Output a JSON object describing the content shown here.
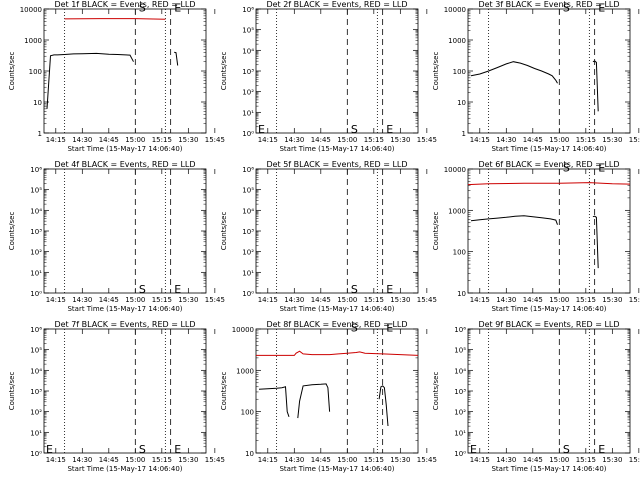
{
  "colors": {
    "events": "#000000",
    "lld": "#cc0000"
  },
  "x_ticks": [
    "14:15",
    "14:30",
    "14:45",
    "15:00",
    "15:15",
    "15:30",
    "15:45"
  ],
  "xlabel": "Start Time (15-May-17 14:06:40)",
  "ylabel": "Counts/sec",
  "marker_labels": {
    "start": "S",
    "end": "E"
  },
  "chart_data": [
    {
      "type": "line",
      "title": "Det 1f BLACK = Events, RED = LLD",
      "yscale": "log",
      "ylim": [
        1,
        10000
      ],
      "y_ticks": [
        "1",
        "10",
        "100",
        "1000",
        "10000"
      ],
      "x_range_min": [
        8.33,
        100.0
      ],
      "dotted_x": [
        20,
        77
      ],
      "dashed_x": [
        60,
        80
      ],
      "marker_x": {
        "S": 62,
        "E": 82
      },
      "marker_y": 11000,
      "series": [
        {
          "role": "lld",
          "x": [
            20,
            40,
            60,
            77
          ],
          "y": [
            4800,
            4900,
            4900,
            4700
          ]
        },
        {
          "role": "events",
          "segments": [
            {
              "x": [
                10,
                12,
                14,
                16,
                20,
                25,
                30,
                38,
                45,
                50,
                57,
                59
              ],
              "y": [
                6,
                310,
                330,
                330,
                340,
                355,
                360,
                370,
                345,
                340,
                325,
                200
              ]
            },
            {
              "x": [
                82,
                83,
                84
              ],
              "y": [
                400,
                390,
                150
              ]
            }
          ]
        }
      ]
    },
    {
      "type": "line",
      "title": "Det 2f BLACK = Events, RED = LLD",
      "yscale": "log",
      "ylim": [
        1,
        1000000
      ],
      "y_ticks": [
        "10⁰",
        "10¹",
        "10²",
        "10³",
        "10⁴",
        "10⁵",
        "10⁶"
      ],
      "x_range_min": [
        8.33,
        100.0
      ],
      "dotted_x": [
        20,
        77
      ],
      "dashed_x": [
        60,
        80
      ],
      "marker_x": {
        "S": 62,
        "E": 82
      },
      "marker_y": 1.6,
      "marker_e_left": true,
      "series": []
    },
    {
      "type": "line",
      "title": "Det 3f BLACK = Events, RED = LLD",
      "yscale": "log",
      "ylim": [
        1,
        10000
      ],
      "y_ticks": [
        "1",
        "10",
        "100",
        "1000",
        "10000"
      ],
      "x_range_min": [
        8.33,
        100.0
      ],
      "dotted_x": [
        20,
        77
      ],
      "dashed_x": [
        60,
        80
      ],
      "marker_x": {
        "S": 62,
        "E": 82
      },
      "marker_y": 11000,
      "series": [
        {
          "role": "events",
          "segments": [
            {
              "x": [
                10,
                15,
                20,
                25,
                30,
                34,
                38,
                42,
                46,
                50,
                54,
                56,
                58,
                59
              ],
              "y": [
                70,
                80,
                100,
                130,
                170,
                200,
                180,
                150,
                120,
                100,
                80,
                70,
                50,
                40
              ]
            },
            {
              "x": [
                79,
                80,
                81,
                82
              ],
              "y": [
                200,
                210,
                190,
                5
              ]
            }
          ]
        }
      ]
    },
    {
      "type": "line",
      "title": "Det 4f BLACK = Events, RED = LLD",
      "yscale": "log",
      "ylim": [
        1,
        1000000
      ],
      "y_ticks": [
        "10⁰",
        "10¹",
        "10²",
        "10³",
        "10⁴",
        "10⁵",
        "10⁶"
      ],
      "x_range_min": [
        8.33,
        100.0
      ],
      "dotted_x": [
        20,
        77
      ],
      "dashed_x": [
        60,
        80
      ],
      "marker_x": {
        "S": 62,
        "E": 82
      },
      "marker_y": 1.6,
      "series": []
    },
    {
      "type": "line",
      "title": "Det 5f BLACK = Events, RED = LLD",
      "yscale": "log",
      "ylim": [
        1,
        1000000
      ],
      "y_ticks": [
        "10⁰",
        "10¹",
        "10²",
        "10³",
        "10⁴",
        "10⁵",
        "10⁶"
      ],
      "x_range_min": [
        8.33,
        100.0
      ],
      "dotted_x": [
        20,
        77
      ],
      "dashed_x": [
        60,
        80
      ],
      "marker_x": {
        "S": 62,
        "E": 82
      },
      "marker_y": 1.6,
      "series": []
    },
    {
      "type": "line",
      "title": "Det 6f BLACK = Events, RED = LLD",
      "yscale": "log",
      "ylim": [
        10,
        10000
      ],
      "y_ticks": [
        "10",
        "100",
        "1000",
        "10000"
      ],
      "x_range_min": [
        8.33,
        100.0
      ],
      "dotted_x": [
        20,
        77
      ],
      "dashed_x": [
        60,
        80
      ],
      "marker_x": {
        "S": 62,
        "E": 82
      },
      "marker_y": 11000,
      "series": [
        {
          "role": "lld",
          "x": [
            8.33,
            20,
            40,
            60,
            70,
            77,
            90,
            100
          ],
          "y": [
            4200,
            4400,
            4500,
            4500,
            4600,
            4700,
            4400,
            4300
          ]
        },
        {
          "role": "events",
          "segments": [
            {
              "x": [
                10,
                15,
                20,
                25,
                30,
                35,
                40,
                45,
                50,
                55,
                58,
                59
              ],
              "y": [
                560,
                590,
                620,
                650,
                680,
                720,
                740,
                700,
                660,
                620,
                580,
                450
              ]
            },
            {
              "x": [
                79,
                80,
                81,
                82
              ],
              "y": [
                700,
                720,
                680,
                40
              ]
            }
          ]
        }
      ]
    },
    {
      "type": "line",
      "title": "Det 7f BLACK = Events, RED = LLD",
      "yscale": "log",
      "ylim": [
        1,
        1000000
      ],
      "y_ticks": [
        "10⁰",
        "10¹",
        "10²",
        "10³",
        "10⁴",
        "10⁵",
        "10⁶"
      ],
      "x_range_min": [
        8.33,
        100.0
      ],
      "dotted_x": [
        20,
        77
      ],
      "dashed_x": [
        60,
        80
      ],
      "marker_x": {
        "S": 62,
        "E": 82
      },
      "marker_y": 1.6,
      "marker_e_left": true,
      "series": []
    },
    {
      "type": "line",
      "title": "Det 8f BLACK = Events, RED = LLD",
      "yscale": "log",
      "ylim": [
        10,
        10000
      ],
      "y_ticks": [
        "10",
        "100",
        "1000",
        "10000"
      ],
      "x_range_min": [
        8.33,
        100.0
      ],
      "dotted_x": [
        20,
        77
      ],
      "dashed_x": [
        60,
        80
      ],
      "marker_x": {
        "S": 62,
        "E": 82
      },
      "marker_y": 11000,
      "series": [
        {
          "role": "lld",
          "x": [
            8.33,
            20,
            30,
            31,
            33,
            35,
            40,
            50,
            55,
            60,
            65,
            67,
            70,
            80,
            90,
            100
          ],
          "y": [
            2300,
            2300,
            2300,
            2600,
            2900,
            2500,
            2400,
            2400,
            2500,
            2600,
            2700,
            2800,
            2600,
            2500,
            2400,
            2300
          ]
        },
        {
          "role": "events",
          "segments": [
            {
              "x": [
                10,
                15,
                20,
                23,
                25,
                26,
                27
              ],
              "y": [
                350,
                360,
                370,
                380,
                400,
                100,
                75
              ]
            },
            {
              "x": [
                32,
                33,
                35,
                40,
                45,
                48,
                49,
                50
              ],
              "y": [
                70,
                180,
                420,
                450,
                460,
                470,
                380,
                100
              ]
            },
            {
              "x": [
                78,
                79,
                80,
                81,
                82,
                83
              ],
              "y": [
                200,
                400,
                420,
                380,
                150,
                45
              ]
            }
          ]
        }
      ]
    },
    {
      "type": "line",
      "title": "Det 9f BLACK = Events, RED = LLD",
      "yscale": "log",
      "ylim": [
        1,
        1000000
      ],
      "y_ticks": [
        "10⁰",
        "10¹",
        "10²",
        "10³",
        "10⁴",
        "10⁵",
        "10⁶"
      ],
      "x_range_min": [
        8.33,
        100.0
      ],
      "dotted_x": [
        20,
        77
      ],
      "dashed_x": [
        60,
        80
      ],
      "marker_x": {
        "S": 62,
        "E": 82
      },
      "marker_y": 1.6,
      "marker_e_left": true,
      "series": []
    }
  ]
}
